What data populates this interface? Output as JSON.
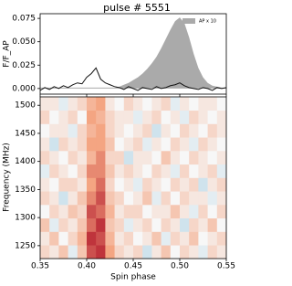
{
  "chart_data": [
    {
      "type": "line",
      "title": "pulse # 5551",
      "ylabel": "F/F_AP",
      "x": [
        0.35,
        0.355,
        0.36,
        0.365,
        0.37,
        0.375,
        0.38,
        0.385,
        0.39,
        0.395,
        0.4,
        0.405,
        0.41,
        0.415,
        0.42,
        0.425,
        0.43,
        0.435,
        0.44,
        0.445,
        0.45,
        0.455,
        0.46,
        0.465,
        0.47,
        0.475,
        0.48,
        0.485,
        0.49,
        0.495,
        0.5,
        0.505,
        0.51,
        0.515,
        0.52,
        0.525,
        0.53,
        0.535,
        0.54,
        0.545,
        0.55
      ],
      "series": [
        {
          "name": "AP x 10",
          "color": "#aaaaaa",
          "fill": true,
          "values": [
            0.001,
            0.001,
            0.001,
            0.001,
            0.001,
            0.001,
            0.001,
            0.001,
            0.001,
            0.001,
            0.001,
            0.001,
            0.001,
            0.001,
            0.001,
            0.001,
            0.001,
            0.002,
            0.004,
            0.006,
            0.009,
            0.012,
            0.016,
            0.021,
            0.027,
            0.034,
            0.043,
            0.053,
            0.063,
            0.072,
            0.076,
            0.07,
            0.055,
            0.037,
            0.022,
            0.012,
            0.006,
            0.003,
            0.002,
            0.001,
            0.001
          ]
        },
        {
          "color": "#111111",
          "fill": false,
          "values": [
            -0.002,
            0.001,
            -0.001,
            0.002,
            0.0,
            0.003,
            0.001,
            0.004,
            0.006,
            0.005,
            0.012,
            0.016,
            0.022,
            0.01,
            0.006,
            0.004,
            0.002,
            0.001,
            -0.001,
            0.002,
            0.0,
            -0.002,
            0.001,
            0.0,
            -0.001,
            0.002,
            0.0,
            0.001,
            0.003,
            0.004,
            0.006,
            0.003,
            0.001,
            0.0,
            -0.001,
            0.001,
            0.0,
            -0.002,
            0.001,
            0.0,
            0.001
          ]
        }
      ],
      "xlim": [
        0.35,
        0.55
      ],
      "xticks": [
        0.35,
        {
          "value": 0.4,
          "label": "0.40"
        },
        0.45,
        {
          "value": 0.5,
          "label": "0.50"
        },
        0.55
      ],
      "ylim": [
        -0.006,
        0.08
      ],
      "yticks": [
        {
          "value": 0,
          "label": "0.000"
        },
        {
          "value": 0.025,
          "label": "0.025"
        },
        {
          "value": 0.05,
          "label": "0.050"
        },
        {
          "value": 0.075,
          "label": "0.075"
        }
      ],
      "legend": "upper right"
    },
    {
      "type": "heatmap",
      "xlabel": "Spin phase",
      "ylabel": "Frequency (MHz)",
      "colormap": "RdBu_r",
      "clim": [
        -1,
        1
      ],
      "xbins": [
        0.35,
        0.36,
        0.37,
        0.38,
        0.39,
        0.4,
        0.41,
        0.42,
        0.43,
        0.44,
        0.45,
        0.46,
        0.47,
        0.48,
        0.49,
        0.5,
        0.51,
        0.52,
        0.53,
        0.54,
        0.55
      ],
      "ybins": [
        1227,
        1251,
        1275,
        1299,
        1323,
        1347,
        1371,
        1395,
        1419,
        1443,
        1467,
        1491,
        1515
      ],
      "values": [
        [
          0.2,
          0.1,
          0.3,
          -0.1,
          0.3,
          0.8,
          0.9,
          0.5,
          0.2,
          0.1,
          0.2,
          -0.2,
          0.1,
          0.3,
          0.0,
          0.2,
          0.1,
          -0.1,
          0.2,
          0.1
        ],
        [
          0.1,
          0.3,
          0.0,
          0.2,
          0.4,
          0.9,
          0.8,
          0.4,
          0.1,
          0.2,
          0.0,
          0.1,
          0.3,
          -0.1,
          0.2,
          0.1,
          0.3,
          0.0,
          0.1,
          0.2
        ],
        [
          0.3,
          -0.1,
          0.2,
          0.1,
          0.3,
          0.7,
          0.9,
          0.3,
          0.2,
          -0.1,
          0.1,
          0.2,
          0.0,
          0.2,
          0.1,
          -0.2,
          0.2,
          0.1,
          0.3,
          0.0
        ],
        [
          0.0,
          0.2,
          0.1,
          0.3,
          0.2,
          0.8,
          0.7,
          0.4,
          0.1,
          0.2,
          0.2,
          0.0,
          0.1,
          0.1,
          0.3,
          0.1,
          -0.1,
          0.2,
          0.0,
          0.2
        ],
        [
          0.2,
          0.1,
          -0.2,
          0.1,
          0.3,
          0.6,
          0.8,
          0.3,
          0.2,
          0.0,
          0.1,
          0.3,
          -0.1,
          0.2,
          0.0,
          0.2,
          0.1,
          0.1,
          -0.1,
          0.1
        ],
        [
          0.1,
          0.0,
          0.2,
          0.2,
          0.1,
          0.5,
          0.7,
          0.2,
          0.0,
          0.1,
          -0.1,
          0.2,
          0.1,
          0.0,
          0.2,
          0.1,
          0.2,
          -0.2,
          0.1,
          0.2
        ],
        [
          -0.1,
          0.2,
          0.1,
          0.0,
          0.2,
          0.6,
          0.6,
          0.3,
          0.1,
          0.2,
          0.1,
          0.0,
          0.2,
          0.1,
          -0.1,
          0.2,
          0.0,
          0.1,
          0.2,
          -0.1
        ],
        [
          0.2,
          0.1,
          0.0,
          0.2,
          0.1,
          0.4,
          0.6,
          0.2,
          0.2,
          -0.2,
          0.1,
          0.1,
          0.0,
          0.3,
          0.1,
          0.0,
          0.2,
          0.1,
          0.0,
          0.1
        ],
        [
          0.1,
          -0.2,
          0.2,
          0.1,
          0.2,
          0.5,
          0.5,
          0.3,
          0.0,
          0.1,
          0.2,
          -0.1,
          0.1,
          0.0,
          0.2,
          0.1,
          -0.1,
          0.2,
          0.1,
          0.0
        ],
        [
          0.0,
          0.1,
          0.1,
          -0.1,
          0.2,
          0.4,
          0.5,
          0.2,
          0.1,
          0.0,
          0.1,
          0.2,
          -0.2,
          0.1,
          0.0,
          0.2,
          0.1,
          0.0,
          0.2,
          0.1
        ],
        [
          0.2,
          0.0,
          0.1,
          0.2,
          0.0,
          0.5,
          0.4,
          0.2,
          0.1,
          0.1,
          -0.1,
          0.1,
          0.2,
          0.0,
          0.1,
          -0.1,
          0.2,
          0.1,
          0.0,
          0.1
        ],
        [
          0.1,
          0.1,
          -0.1,
          0.1,
          0.2,
          0.4,
          0.5,
          0.1,
          0.0,
          0.2,
          0.1,
          0.0,
          0.1,
          0.2,
          -0.1,
          0.1,
          0.0,
          0.1,
          0.1,
          0.0
        ]
      ],
      "xlim": [
        0.35,
        0.55
      ],
      "xticks": [
        0.35,
        {
          "value": 0.4,
          "label": "0.40"
        },
        0.45,
        {
          "value": 0.5,
          "label": "0.50"
        },
        0.55
      ],
      "ylim": [
        1227,
        1515
      ],
      "yticks": [
        1250,
        1300,
        1350,
        1400,
        1450,
        1500
      ]
    }
  ]
}
